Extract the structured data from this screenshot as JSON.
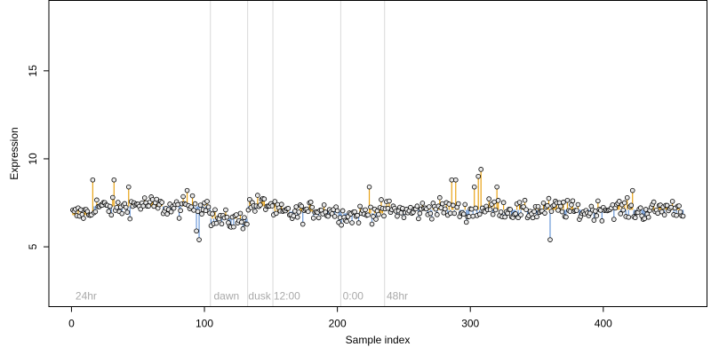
{
  "chart_data": {
    "type": "scatter",
    "title": "",
    "xlabel": "Sample index",
    "ylabel": "Expression",
    "xlim": [
      -17,
      478
    ],
    "ylim": [
      1.6,
      19.0
    ],
    "xticks": [
      0,
      100,
      200,
      300,
      400
    ],
    "yticks": [
      5,
      10,
      15
    ],
    "grid": false,
    "legend": "none",
    "colors": {
      "above_mean": "#e8a317",
      "below_mean": "#6a98d8",
      "separator": "#d9d9d9",
      "point_fill": "#e8e8e8",
      "point_stroke": "#000000"
    },
    "segments": [
      {
        "start": 1,
        "end": 16,
        "mean": 6.8
      },
      {
        "start": 17,
        "end": 104,
        "mean": 7.3
      },
      {
        "start": 105,
        "end": 132,
        "mean": 6.6
      },
      {
        "start": 133,
        "end": 151,
        "mean": 7.3
      },
      {
        "start": 152,
        "end": 202,
        "mean": 7.0
      },
      {
        "start": 203,
        "end": 235,
        "mean": 6.9
      },
      {
        "start": 236,
        "end": 460,
        "mean": 7.1
      }
    ],
    "separators": [
      {
        "x": 104,
        "label": ""
      },
      {
        "x": 132,
        "label": ""
      },
      {
        "x": 151,
        "label": ""
      },
      {
        "x": 202,
        "label": ""
      },
      {
        "x": 235,
        "label": ""
      }
    ],
    "section_labels": [
      {
        "x": 3,
        "text": "24hr"
      },
      {
        "x": 107,
        "text": "dawn"
      },
      {
        "x": 133,
        "text": "dusk"
      },
      {
        "x": 152,
        "text": "12:00"
      },
      {
        "x": 204,
        "text": "0:00"
      },
      {
        "x": 237,
        "text": "48hr"
      }
    ],
    "highlights": [
      {
        "x": 16,
        "y": 8.8
      },
      {
        "x": 32,
        "y": 8.8
      },
      {
        "x": 43,
        "y": 8.4
      },
      {
        "x": 87,
        "y": 8.2
      },
      {
        "x": 94,
        "y": 5.9
      },
      {
        "x": 96,
        "y": 5.4
      },
      {
        "x": 224,
        "y": 8.4
      },
      {
        "x": 286,
        "y": 8.8
      },
      {
        "x": 289,
        "y": 8.8
      },
      {
        "x": 303,
        "y": 8.4
      },
      {
        "x": 306,
        "y": 9.0
      },
      {
        "x": 308,
        "y": 9.4
      },
      {
        "x": 320,
        "y": 8.4
      },
      {
        "x": 360,
        "y": 5.4
      },
      {
        "x": 422,
        "y": 8.2
      }
    ],
    "n_points": 460
  }
}
